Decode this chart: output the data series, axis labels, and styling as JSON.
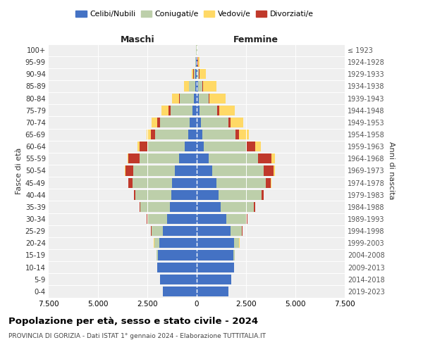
{
  "age_groups": [
    "0-4",
    "5-9",
    "10-14",
    "15-19",
    "20-24",
    "25-29",
    "30-34",
    "35-39",
    "40-44",
    "45-49",
    "50-54",
    "55-59",
    "60-64",
    "65-69",
    "70-74",
    "75-79",
    "80-84",
    "85-89",
    "90-94",
    "95-99",
    "100+"
  ],
  "birth_years": [
    "2019-2023",
    "2014-2018",
    "2009-2013",
    "2004-2008",
    "1999-2003",
    "1994-1998",
    "1989-1993",
    "1984-1988",
    "1979-1983",
    "1974-1978",
    "1969-1973",
    "1964-1968",
    "1959-1963",
    "1954-1958",
    "1949-1953",
    "1944-1948",
    "1939-1943",
    "1934-1938",
    "1929-1933",
    "1924-1928",
    "≤ 1923"
  ],
  "male_celibi": [
    1700,
    1850,
    2000,
    1950,
    1900,
    1700,
    1500,
    1350,
    1300,
    1250,
    1100,
    900,
    600,
    420,
    350,
    220,
    150,
    80,
    60,
    30,
    10
  ],
  "male_coniugati": [
    5,
    5,
    10,
    80,
    250,
    600,
    1000,
    1500,
    1800,
    2000,
    2100,
    2000,
    1900,
    1700,
    1500,
    1100,
    700,
    300,
    100,
    30,
    10
  ],
  "male_vedovi": [
    0,
    0,
    0,
    5,
    5,
    5,
    5,
    5,
    10,
    20,
    30,
    50,
    100,
    200,
    300,
    350,
    350,
    250,
    80,
    20,
    5
  ],
  "male_divorziati": [
    0,
    0,
    0,
    5,
    10,
    20,
    30,
    50,
    80,
    200,
    400,
    550,
    400,
    200,
    150,
    100,
    50,
    20,
    10,
    5,
    0
  ],
  "female_celibi": [
    1600,
    1750,
    1900,
    1850,
    1900,
    1700,
    1500,
    1200,
    1100,
    1000,
    800,
    600,
    350,
    280,
    200,
    150,
    100,
    80,
    40,
    20,
    10
  ],
  "female_coniugati": [
    5,
    5,
    10,
    80,
    250,
    600,
    1050,
    1700,
    2200,
    2500,
    2600,
    2500,
    2200,
    1700,
    1400,
    900,
    500,
    200,
    80,
    30,
    10
  ],
  "female_vedovi": [
    0,
    0,
    0,
    0,
    5,
    5,
    5,
    10,
    20,
    40,
    80,
    150,
    300,
    500,
    650,
    800,
    800,
    700,
    350,
    100,
    20
  ],
  "female_divorziati": [
    0,
    0,
    0,
    5,
    10,
    20,
    30,
    50,
    80,
    250,
    500,
    700,
    400,
    150,
    100,
    80,
    50,
    30,
    10,
    5,
    0
  ],
  "colors": {
    "celibi": "#4472C4",
    "coniugati": "#BDCFAA",
    "vedovi": "#FFD966",
    "divorziati": "#C0392B"
  },
  "xlim": 7500,
  "title": "Popolazione per età, sesso e stato civile - 2024",
  "subtitle": "PROVINCIA DI GORIZIA - Dati ISTAT 1° gennaio 2024 - Elaborazione TUTTITALIA.IT",
  "xlabel_left": "Maschi",
  "xlabel_right": "Femmine",
  "ylabel_left": "Fasce di età",
  "ylabel_right": "Anni di nascita",
  "legend_labels": [
    "Celibi/Nubili",
    "Coniugati/e",
    "Vedovi/e",
    "Divorziati/e"
  ],
  "bg_color": "#efefef",
  "grid_color": "#cccccc"
}
